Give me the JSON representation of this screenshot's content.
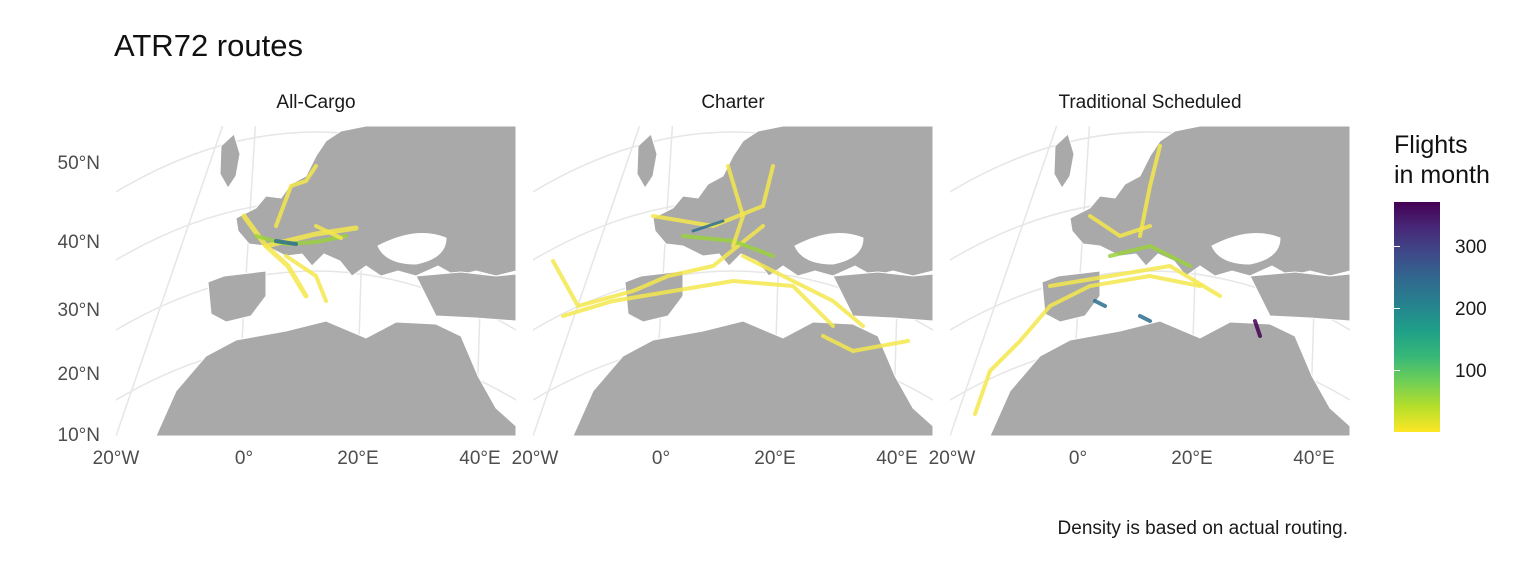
{
  "title": "ATR72 routes",
  "caption": "Density is based on actual routing.",
  "facets": [
    "All-Cargo",
    "Charter",
    "Traditional Scheduled"
  ],
  "y_axis": {
    "labels": [
      "50°N",
      "40°N",
      "30°N",
      "20°N",
      "10°N"
    ],
    "values": [
      50,
      40,
      30,
      20,
      10
    ]
  },
  "x_axis": {
    "labels": [
      "20°W",
      "0°",
      "20°E",
      "40°E"
    ],
    "values": [
      -20,
      0,
      20,
      40
    ]
  },
  "legend": {
    "title": "Flights in month",
    "title_lines": [
      "Flights",
      "in month"
    ],
    "labels": [
      "300",
      "200",
      "100"
    ],
    "values": [
      300,
      200,
      100
    ],
    "range": [
      0,
      370
    ],
    "colormap": "viridis (reversed: low = yellow, high = purple)",
    "colors": [
      "#fde725",
      "#b5de2b",
      "#6ece58",
      "#35b779",
      "#1f9e89",
      "#26828e",
      "#31688e",
      "#3e4989",
      "#482878",
      "#440154"
    ]
  },
  "colors": {
    "land": "#a9a9a9",
    "graticule": "#e6e6e6",
    "borders": "#ffffff",
    "route_low": "#f5e84b",
    "route_mid": "#9ad13e",
    "route_high": "#2d6f8e",
    "route_peak": "#440154"
  }
}
